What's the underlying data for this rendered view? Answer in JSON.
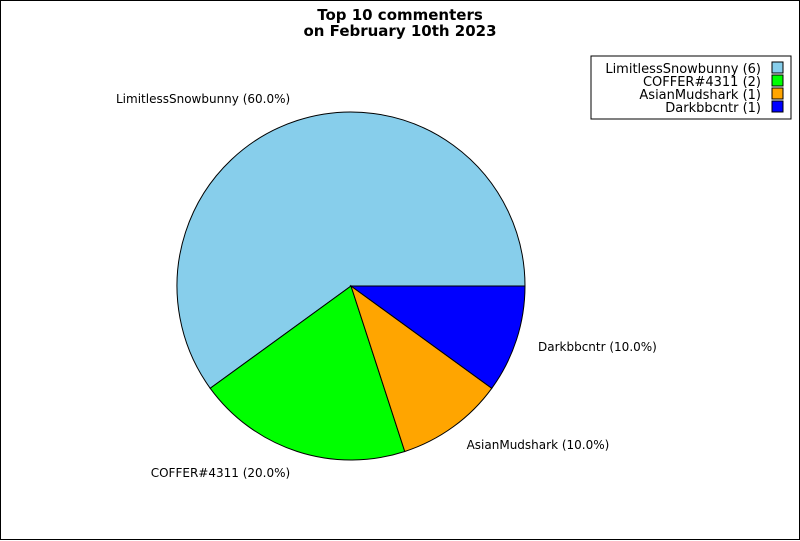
{
  "chart_data": {
    "type": "pie",
    "title_lines": [
      "Top 10 commenters",
      "on February 10th 2023"
    ],
    "legend_position": "top-right",
    "slices": [
      {
        "label": "LimitlessSnowbunny",
        "value": 6,
        "percent_label": "LimitlessSnowbunny (60.0%)",
        "legend_label": "LimitlessSnowbunny (6)",
        "color": "#87ceeb"
      },
      {
        "label": "COFFER#4311",
        "value": 2,
        "percent_label": "COFFER#4311 (20.0%)",
        "legend_label": "COFFER#4311 (2)",
        "color": "#00ff00"
      },
      {
        "label": "AsianMudshark",
        "value": 1,
        "percent_label": "AsianMudshark (10.0%)",
        "legend_label": "AsianMudshark (1)",
        "color": "#ffa500"
      },
      {
        "label": "Darkbbcntr",
        "value": 1,
        "percent_label": "Darkbbcntr (10.0%)",
        "legend_label": "Darkbbcntr (1)",
        "color": "#0000ff"
      }
    ]
  }
}
